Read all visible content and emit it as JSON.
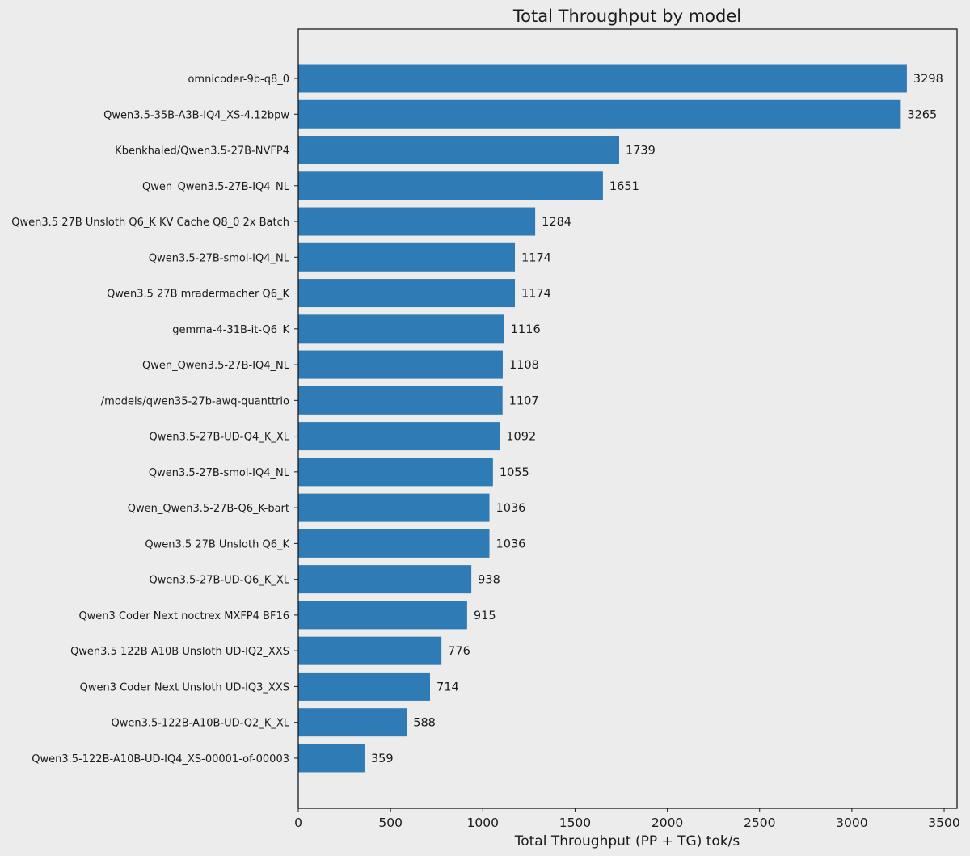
{
  "chart_data": {
    "type": "bar",
    "orientation": "horizontal",
    "title": "Total Throughput by model",
    "xlabel": "Total Throughput (PP + TG) tok/s",
    "ylabel": "",
    "xlim": [
      0,
      3570
    ],
    "xticks": [
      0,
      500,
      1000,
      1500,
      2000,
      2500,
      3000,
      3500
    ],
    "grid": false,
    "bar_color": "#2e7bb6",
    "background_color": "#ececec",
    "categories": [
      "omnicoder-9b-q8_0",
      "Qwen3.5-35B-A3B-IQ4_XS-4.12bpw",
      "Kbenkhaled/Qwen3.5-27B-NVFP4",
      "Qwen_Qwen3.5-27B-IQ4_NL",
      "Qwen3.5 27B Unsloth Q6_K KV Cache Q8_0 2x Batch",
      "Qwen3.5-27B-smol-IQ4_NL",
      "Qwen3.5 27B mradermacher Q6_K",
      "gemma-4-31B-it-Q6_K",
      "Qwen_Qwen3.5-27B-IQ4_NL",
      "/models/qwen35-27b-awq-quanttrio",
      "Qwen3.5-27B-UD-Q4_K_XL",
      "Qwen3.5-27B-smol-IQ4_NL",
      "Qwen_Qwen3.5-27B-Q6_K-bart",
      "Qwen3.5 27B Unsloth Q6_K",
      "Qwen3.5-27B-UD-Q6_K_XL",
      "Qwen3 Coder Next noctrex MXFP4 BF16",
      "Qwen3.5 122B A10B Unsloth UD-IQ2_XXS",
      "Qwen3 Coder Next Unsloth UD-IQ3_XXS",
      "Qwen3.5-122B-A10B-UD-Q2_K_XL",
      "Qwen3.5-122B-A10B-UD-IQ4_XS-00001-of-00003"
    ],
    "values": [
      3298,
      3265,
      1739,
      1651,
      1284,
      1174,
      1174,
      1116,
      1108,
      1107,
      1092,
      1055,
      1036,
      1036,
      938,
      915,
      776,
      714,
      588,
      359
    ],
    "data_labels": [
      "3298",
      "3265",
      "1739",
      "1651",
      "1284",
      "1174",
      "1174",
      "1116",
      "1108",
      "1107",
      "1092",
      "1055",
      "1036",
      "1036",
      "938",
      "915",
      "776",
      "714",
      "588",
      "359"
    ]
  }
}
